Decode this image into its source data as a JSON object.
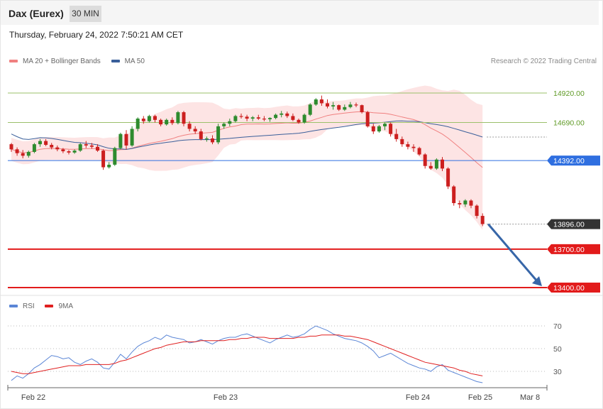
{
  "header": {
    "title": "Dax (Eurex)",
    "timeframe": "30 MIN",
    "datetime": "Thursday, February 24, 2022 7:50:21 AM CET"
  },
  "legend": {
    "main": [
      {
        "label": "MA 20 + Bollinger Bands",
        "color": "#f08080"
      },
      {
        "label": "MA 50",
        "color": "#3a5f9a"
      }
    ],
    "rsi": [
      {
        "label": "RSI",
        "color": "#5b86d6"
      },
      {
        "label": "9MA",
        "color": "#e02020"
      }
    ]
  },
  "credit": "Research © 2022 Trading Central",
  "colors": {
    "up": "#2e8b2e",
    "down": "#cc1f1f",
    "resistance": "#9bc06a",
    "pivot": "#2f6fe0",
    "support": "#e21b1b",
    "current": "#333333",
    "arrow": "#3766a8",
    "band_fill": "#fde4e4"
  },
  "chart_data": [
    {
      "type": "candlestick",
      "title": "Dax (Eurex)",
      "timeframe": "30 MIN",
      "ylim": [
        13400,
        14960
      ],
      "x_ticks": [
        "Feb 22",
        "Feb 23",
        "Feb 24",
        "Feb 25",
        "Mar 8"
      ],
      "levels": [
        {
          "label": "14920.00",
          "value": 14920,
          "kind": "resistance"
        },
        {
          "label": "14690.00",
          "value": 14690,
          "kind": "resistance"
        },
        {
          "label": "14392.00",
          "value": 14392,
          "kind": "pivot"
        },
        {
          "label": "13896.00",
          "value": 13896,
          "kind": "current"
        },
        {
          "label": "13700.00",
          "value": 13700,
          "kind": "support"
        },
        {
          "label": "13400.00",
          "value": 13400,
          "kind": "support"
        }
      ],
      "ohlc": [
        [
          14520,
          14530,
          14460,
          14480
        ],
        [
          14480,
          14495,
          14430,
          14450
        ],
        [
          14450,
          14475,
          14410,
          14430
        ],
        [
          14430,
          14470,
          14415,
          14460
        ],
        [
          14460,
          14530,
          14450,
          14520
        ],
        [
          14520,
          14560,
          14500,
          14545
        ],
        [
          14545,
          14560,
          14505,
          14515
        ],
        [
          14515,
          14530,
          14480,
          14495
        ],
        [
          14495,
          14510,
          14465,
          14480
        ],
        [
          14480,
          14490,
          14450,
          14465
        ],
        [
          14465,
          14475,
          14440,
          14455
        ],
        [
          14455,
          14480,
          14445,
          14470
        ],
        [
          14470,
          14530,
          14460,
          14520
        ],
        [
          14520,
          14545,
          14490,
          14510
        ],
        [
          14510,
          14530,
          14485,
          14500
        ],
        [
          14500,
          14520,
          14460,
          14470
        ],
        [
          14470,
          14480,
          14320,
          14340
        ],
        [
          14340,
          14380,
          14330,
          14360
        ],
        [
          14360,
          14500,
          14350,
          14490
        ],
        [
          14490,
          14610,
          14480,
          14600
        ],
        [
          14600,
          14630,
          14480,
          14510
        ],
        [
          14510,
          14660,
          14500,
          14640
        ],
        [
          14640,
          14730,
          14620,
          14720
        ],
        [
          14720,
          14740,
          14680,
          14700
        ],
        [
          14700,
          14750,
          14690,
          14740
        ],
        [
          14740,
          14750,
          14690,
          14710
        ],
        [
          14710,
          14720,
          14660,
          14675
        ],
        [
          14675,
          14720,
          14665,
          14710
        ],
        [
          14710,
          14730,
          14670,
          14685
        ],
        [
          14685,
          14780,
          14675,
          14770
        ],
        [
          14770,
          14780,
          14660,
          14680
        ],
        [
          14680,
          14700,
          14620,
          14640
        ],
        [
          14640,
          14660,
          14600,
          14620
        ],
        [
          14620,
          14640,
          14550,
          14560
        ],
        [
          14560,
          14580,
          14540,
          14565
        ],
        [
          14565,
          14590,
          14520,
          14535
        ],
        [
          14535,
          14680,
          14520,
          14660
        ],
        [
          14660,
          14690,
          14640,
          14680
        ],
        [
          14680,
          14720,
          14660,
          14700
        ],
        [
          14700,
          14750,
          14690,
          14740
        ],
        [
          14740,
          14760,
          14720,
          14735
        ],
        [
          14735,
          14750,
          14700,
          14720
        ],
        [
          14720,
          14740,
          14700,
          14730
        ],
        [
          14730,
          14750,
          14710,
          14720
        ],
        [
          14720,
          14740,
          14700,
          14715
        ],
        [
          14715,
          14730,
          14695,
          14725
        ],
        [
          14725,
          14760,
          14715,
          14750
        ],
        [
          14750,
          14780,
          14730,
          14760
        ],
        [
          14760,
          14775,
          14725,
          14740
        ],
        [
          14740,
          14760,
          14700,
          14710
        ],
        [
          14710,
          14720,
          14680,
          14690
        ],
        [
          14690,
          14760,
          14680,
          14750
        ],
        [
          14750,
          14840,
          14740,
          14830
        ],
        [
          14830,
          14880,
          14820,
          14870
        ],
        [
          14870,
          14900,
          14820,
          14840
        ],
        [
          14840,
          14870,
          14800,
          14815
        ],
        [
          14815,
          14850,
          14790,
          14825
        ],
        [
          14825,
          14830,
          14780,
          14790
        ],
        [
          14790,
          14830,
          14780,
          14810
        ],
        [
          14810,
          14850,
          14800,
          14830
        ],
        [
          14830,
          14845,
          14810,
          14825
        ],
        [
          14825,
          14830,
          14760,
          14770
        ],
        [
          14770,
          14780,
          14650,
          14660
        ],
        [
          14660,
          14680,
          14600,
          14620
        ],
        [
          14620,
          14670,
          14610,
          14660
        ],
        [
          14660,
          14690,
          14630,
          14680
        ],
        [
          14680,
          14690,
          14580,
          14600
        ],
        [
          14600,
          14640,
          14540,
          14560
        ],
        [
          14560,
          14580,
          14500,
          14520
        ],
        [
          14520,
          14540,
          14480,
          14500
        ],
        [
          14500,
          14520,
          14460,
          14490
        ],
        [
          14490,
          14500,
          14430,
          14440
        ],
        [
          14440,
          14450,
          14330,
          14350
        ],
        [
          14350,
          14380,
          14320,
          14330
        ],
        [
          14330,
          14410,
          14320,
          14400
        ],
        [
          14400,
          14420,
          14310,
          14330
        ],
        [
          14330,
          14340,
          14170,
          14190
        ],
        [
          14190,
          14200,
          14040,
          14060
        ],
        [
          14060,
          14080,
          14020,
          14050
        ],
        [
          14050,
          14090,
          14030,
          14080
        ],
        [
          14080,
          14090,
          14020,
          14040
        ],
        [
          14040,
          14050,
          13940,
          13960
        ],
        [
          13960,
          13980,
          13880,
          13896
        ]
      ]
    },
    {
      "type": "line",
      "title": "RSI",
      "ylim": [
        20,
        80
      ],
      "y_ticks": [
        70,
        50,
        30
      ],
      "series": [
        {
          "name": "RSI",
          "values": [
            22,
            26,
            24,
            28,
            33,
            36,
            40,
            44,
            43,
            41,
            42,
            38,
            36,
            39,
            41,
            38,
            33,
            32,
            38,
            45,
            41,
            47,
            52,
            55,
            57,
            60,
            58,
            62,
            60,
            59,
            58,
            55,
            56,
            58,
            56,
            54,
            57,
            59,
            60,
            60,
            62,
            63,
            61,
            59,
            57,
            55,
            58,
            60,
            62,
            60,
            61,
            63,
            67,
            70,
            68,
            66,
            63,
            61,
            59,
            58,
            57,
            55,
            52,
            48,
            42,
            44,
            46,
            43,
            40,
            37,
            35,
            33,
            32,
            30,
            34,
            36,
            31,
            29,
            27,
            25,
            23,
            21,
            20
          ]
        },
        {
          "name": "9MA",
          "values": [
            30,
            29,
            28,
            28,
            29,
            30,
            31,
            32,
            33,
            34,
            35,
            35,
            35,
            36,
            36,
            36,
            36,
            36,
            37,
            39,
            40,
            42,
            44,
            46,
            48,
            50,
            51,
            53,
            54,
            55,
            56,
            56,
            56,
            57,
            57,
            57,
            57,
            57,
            58,
            58,
            59,
            59,
            60,
            60,
            60,
            59,
            59,
            59,
            59,
            59,
            60,
            60,
            61,
            61,
            62,
            62,
            62,
            62,
            61,
            61,
            60,
            59,
            58,
            56,
            54,
            52,
            50,
            48,
            46,
            44,
            42,
            40,
            38,
            37,
            36,
            35,
            34,
            33,
            31,
            30,
            28,
            27,
            26
          ]
        }
      ]
    }
  ]
}
